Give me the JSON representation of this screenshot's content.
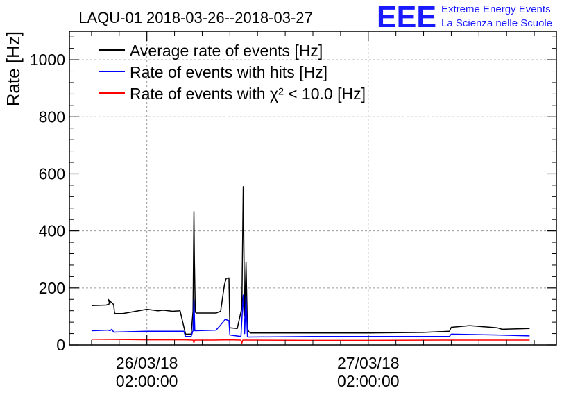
{
  "chart_data": {
    "type": "line",
    "title": "LAQU-01 2018-03-26--2018-03-27",
    "xlabel": "",
    "ylabel": "Rate [Hz]",
    "ylim": [
      0,
      1100
    ],
    "yticks": [
      0,
      200,
      400,
      600,
      800,
      1000
    ],
    "xlim_hours": [
      -8.4,
      44.4
    ],
    "x_unit": "hours since 26/03/18 02:00:00",
    "xticks": [
      {
        "x": 0,
        "line1": "26/03/18",
        "line2": "02:00:00"
      },
      {
        "x": 24,
        "line1": "27/03/18",
        "line2": "02:00:00"
      }
    ],
    "grid": true,
    "legend_position": "top-left",
    "series": [
      {
        "name": "Average rate of events [Hz]",
        "color": "#000000",
        "x": [
          -6,
          -4.4,
          -4,
          -4.2,
          -3.6,
          -3.5,
          -3.4,
          -2.6,
          0,
          1.2,
          1.8,
          2.8,
          3.6,
          4.2,
          4.8,
          5.0,
          5.1,
          5.15,
          5.25,
          5.35,
          5.6,
          7.5,
          8.0,
          8.4,
          8.6,
          8.9,
          9.0,
          9.8,
          10.3,
          10.45,
          10.6,
          10.75,
          10.9,
          11.0,
          11.1,
          11.25,
          11.4,
          12,
          18,
          24,
          30,
          32.8,
          33,
          35,
          38,
          38.5,
          41.5
        ],
        "y": [
          138,
          140,
          145,
          160,
          142,
          112,
          110,
          110,
          125,
          120,
          122,
          118,
          120,
          38,
          38,
          118,
          468,
          300,
          115,
          112,
          112,
          112,
          118,
          210,
          233,
          235,
          60,
          58,
          130,
          555,
          100,
          290,
          60,
          50,
          45,
          42,
          42,
          42,
          42,
          42,
          44,
          48,
          62,
          68,
          60,
          55,
          58
        ]
      },
      {
        "name": "Rate of events with hits [Hz]",
        "color": "#0000ff",
        "x": [
          -6,
          -4.2,
          -4,
          -3.8,
          -3.6,
          0,
          4,
          4.2,
          4.8,
          5.0,
          5.1,
          5.2,
          5.3,
          7.5,
          8.0,
          8.5,
          8.9,
          9.0,
          10.2,
          10.45,
          10.6,
          10.75,
          10.9,
          11.0,
          11.2,
          18,
          24,
          32.8,
          33,
          38,
          41.5
        ],
        "y": [
          50,
          52,
          50,
          55,
          45,
          48,
          48,
          30,
          30,
          50,
          160,
          50,
          50,
          52,
          70,
          90,
          85,
          35,
          30,
          175,
          40,
          170,
          30,
          28,
          28,
          30,
          30,
          30,
          38,
          35,
          32
        ]
      },
      {
        "name": "Rate of events with χ² < 10.0 [Hz]",
        "color": "#ff0000",
        "x": [
          -6,
          -2,
          0,
          4,
          4.2,
          5.0,
          5.1,
          5.2,
          7,
          9,
          10.2,
          10.3,
          10.4,
          11.2,
          18,
          24,
          33,
          38,
          41.5
        ],
        "y": [
          20,
          19,
          18,
          18,
          18,
          17,
          8,
          17,
          17,
          18,
          17,
          6,
          17,
          17,
          16,
          16,
          17,
          17,
          17
        ]
      }
    ]
  },
  "logo": {
    "mark": "EEE",
    "line1": "Extreme Energy Events",
    "line2": "La Scienza nelle Scuole",
    "color": "#1a1aff"
  }
}
